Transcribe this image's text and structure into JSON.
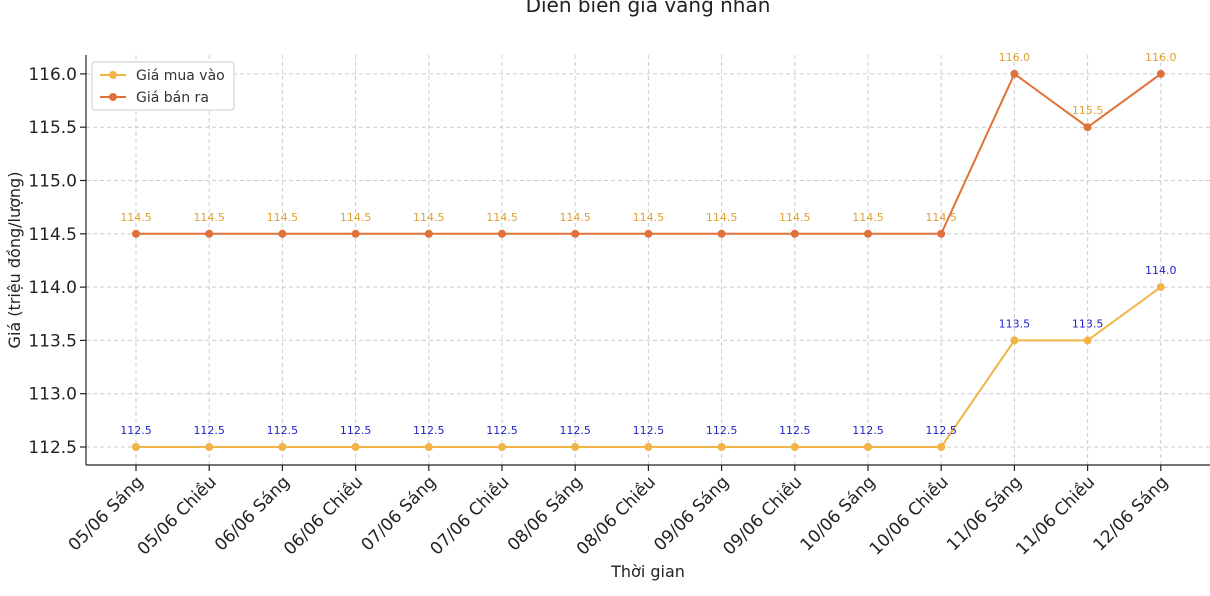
{
  "chart_data": {
    "type": "line",
    "title": "Diễn biến giá vàng nhẫn",
    "xlabel": "Thời gian",
    "ylabel": "Giá (triệu đồng/lượng)",
    "categories": [
      "05/06 Sáng",
      "05/06 Chiều",
      "06/06 Sáng",
      "06/06 Chiều",
      "07/06 Sáng",
      "07/06 Chiều",
      "08/06 Sáng",
      "08/06 Chiều",
      "09/06 Sáng",
      "09/06 Chiều",
      "10/06 Sáng",
      "10/06 Chiều",
      "11/06 Sáng",
      "11/06 Chiều",
      "12/06 Sáng"
    ],
    "series": [
      {
        "name": "Giá mua vào",
        "color": "#F2B447",
        "label_color": "#1f1fc8",
        "values": [
          112.5,
          112.5,
          112.5,
          112.5,
          112.5,
          112.5,
          112.5,
          112.5,
          112.5,
          112.5,
          112.5,
          112.5,
          113.5,
          113.5,
          114.0
        ],
        "labels": [
          "112.5",
          "112.5",
          "112.5",
          "112.5",
          "112.5",
          "112.5",
          "112.5",
          "112.5",
          "112.5",
          "112.5",
          "112.5",
          "112.5",
          "113.5",
          "113.5",
          "114.0"
        ]
      },
      {
        "name": "Giá bán ra",
        "color": "#E0713A",
        "label_color": "#E0A030",
        "values": [
          114.5,
          114.5,
          114.5,
          114.5,
          114.5,
          114.5,
          114.5,
          114.5,
          114.5,
          114.5,
          114.5,
          114.5,
          116.0,
          115.5,
          116.0
        ],
        "labels": [
          "114.5",
          "114.5",
          "114.5",
          "114.5",
          "114.5",
          "114.5",
          "114.5",
          "114.5",
          "114.5",
          "114.5",
          "114.5",
          "114.5",
          "116.0",
          "115.5",
          "116.0"
        ]
      }
    ],
    "yticks": [
      "112.5",
      "113.0",
      "113.5",
      "114.0",
      "114.5",
      "115.0",
      "115.5",
      "116.0"
    ],
    "ylim": [
      112.3,
      116.2
    ],
    "grid": true,
    "legend": "top-left"
  }
}
